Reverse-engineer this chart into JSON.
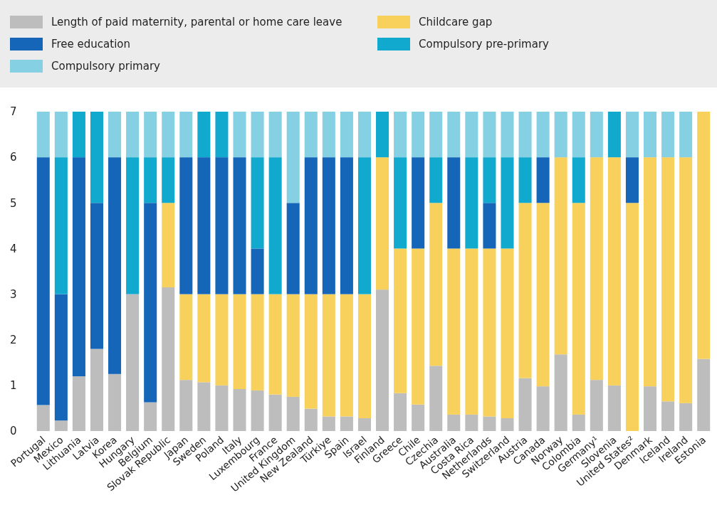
{
  "chart_data": {
    "type": "bar",
    "stacked": true,
    "legend": "top",
    "grid": false,
    "categories": [
      "Portugal",
      "Mexico",
      "Lithuania",
      "Latvia",
      "Korea",
      "Hungary",
      "Belgium",
      "Slovak Republic",
      "Japan",
      "Sweden",
      "Poland",
      "Italy",
      "Luxembourg",
      "France",
      "United Kingdom",
      "New Zealand",
      "Türkiye",
      "Spain",
      "Israel",
      "Finland",
      "Greece",
      "Chile",
      "Czechia",
      "Australia",
      "Costa Rica",
      "Netherlands",
      "Switzerland",
      "Austria",
      "Canada",
      "Norway",
      "Colombia",
      "Germany¹",
      "Slovenia",
      "United States²",
      "Denmark",
      "Iceland",
      "Ireland",
      "Estonia"
    ],
    "ylim": [
      0,
      7
    ],
    "yticks": [
      0,
      1,
      2,
      3,
      4,
      5,
      6,
      7
    ],
    "series": [
      {
        "name": "Length of paid maternity, parental or home care leave",
        "color": "#bdbdbd",
        "values": [
          0.57,
          0.23,
          1.2,
          1.8,
          1.25,
          3.0,
          0.63,
          3.15,
          1.12,
          1.07,
          1.0,
          0.92,
          0.89,
          0.8,
          0.75,
          0.49,
          0.32,
          0.32,
          0.28,
          3.1,
          0.83,
          0.58,
          1.43,
          0.36,
          0.36,
          0.32,
          0.28,
          1.16,
          0.98,
          1.68,
          0.36,
          1.12,
          1.0,
          0,
          0.98,
          0.65,
          0.61,
          1.58
        ]
      },
      {
        "name": "Childcare gap",
        "color": "#f8d15c",
        "values": [
          0,
          0,
          0,
          0,
          0,
          0,
          0,
          1.85,
          1.88,
          1.93,
          2.0,
          2.08,
          2.11,
          2.2,
          2.25,
          2.51,
          2.68,
          2.68,
          2.72,
          2.9,
          3.17,
          3.42,
          3.57,
          3.64,
          3.64,
          3.68,
          3.72,
          3.84,
          4.02,
          4.32,
          4.64,
          4.88,
          5.0,
          5,
          5.02,
          5.35,
          5.39,
          5.42
        ]
      },
      {
        "name": "Free education",
        "color": "#1565b8",
        "values": [
          5.43,
          2.77,
          4.8,
          3.2,
          4.75,
          0,
          4.37,
          0,
          3,
          3,
          3,
          3,
          1,
          0,
          2,
          3,
          3,
          3,
          0,
          0,
          0,
          2,
          0,
          2,
          0,
          1,
          0,
          0,
          1,
          0,
          0,
          0,
          0,
          1,
          0,
          0,
          0,
          0
        ]
      },
      {
        "name": "Compulsory pre-primary",
        "color": "#12a9cf",
        "values": [
          0,
          3,
          1,
          2,
          0,
          3,
          1,
          1,
          0,
          1,
          1,
          0,
          2,
          3,
          0,
          0,
          0,
          0,
          3,
          1,
          2,
          0,
          1,
          0,
          2,
          1,
          2,
          1,
          0,
          0,
          1,
          0,
          1,
          0,
          0,
          0,
          0,
          0
        ]
      },
      {
        "name": "Compulsory primary",
        "color": "#85d0e2",
        "values": [
          1,
          1,
          0,
          0,
          1,
          1,
          1,
          1,
          1,
          0,
          0,
          1,
          1,
          1,
          2,
          1,
          1,
          1,
          1,
          0,
          1,
          1,
          1,
          1,
          1,
          1,
          1,
          1,
          1,
          1,
          1,
          1,
          0,
          1,
          1,
          1,
          1,
          0
        ]
      }
    ]
  }
}
